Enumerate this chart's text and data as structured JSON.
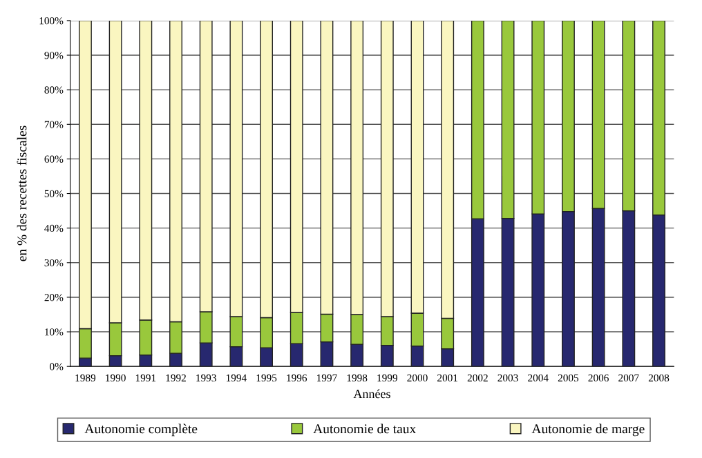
{
  "chart_data": {
    "type": "bar",
    "stacked": true,
    "xlabel": "Années",
    "ylabel": "en % des recettes fiscales",
    "categories": [
      "1989",
      "1990",
      "1991",
      "1992",
      "1993",
      "1994",
      "1995",
      "1996",
      "1997",
      "1998",
      "1999",
      "2000",
      "2001",
      "2002",
      "2003",
      "2004",
      "2005",
      "2006",
      "2007",
      "2008"
    ],
    "series": [
      {
        "name": "Autonomie complète",
        "color": "#27286f",
        "values": [
          2.4,
          3.1,
          3.3,
          3.8,
          6.8,
          5.7,
          5.4,
          6.6,
          7.1,
          6.4,
          6.1,
          5.9,
          5.1,
          42.7,
          42.8,
          44.1,
          44.8,
          45.7,
          45.0,
          43.8
        ]
      },
      {
        "name": "Autonomie de taux",
        "color": "#99c83c",
        "values": [
          8.5,
          9.5,
          10.1,
          9.1,
          9.0,
          8.7,
          8.7,
          9.0,
          8.0,
          8.6,
          8.3,
          9.5,
          8.8,
          57.3,
          57.2,
          55.9,
          55.2,
          54.3,
          55.0,
          56.2
        ]
      },
      {
        "name": "Autonomie de marge",
        "color": "#faf6c0",
        "values": [
          89.1,
          87.4,
          86.6,
          87.1,
          84.2,
          85.6,
          85.9,
          84.4,
          84.9,
          85.0,
          85.6,
          84.6,
          86.1,
          null,
          null,
          null,
          null,
          null,
          null,
          null
        ]
      }
    ],
    "ylim": [
      0,
      100
    ],
    "yticks": [
      {
        "value": 0,
        "label": "0%"
      },
      {
        "value": 10,
        "label": "10%"
      },
      {
        "value": 20,
        "label": "20%"
      },
      {
        "value": 30,
        "label": "30%"
      },
      {
        "value": 40,
        "label": "40%"
      },
      {
        "value": 50,
        "label": "50%"
      },
      {
        "value": 60,
        "label": "60%"
      },
      {
        "value": 70,
        "label": "70%"
      },
      {
        "value": 80,
        "label": "80%"
      },
      {
        "value": 90,
        "label": "90%"
      },
      {
        "value": 100,
        "label": "100%"
      }
    ],
    "grid": "y",
    "legend": "bottom"
  }
}
